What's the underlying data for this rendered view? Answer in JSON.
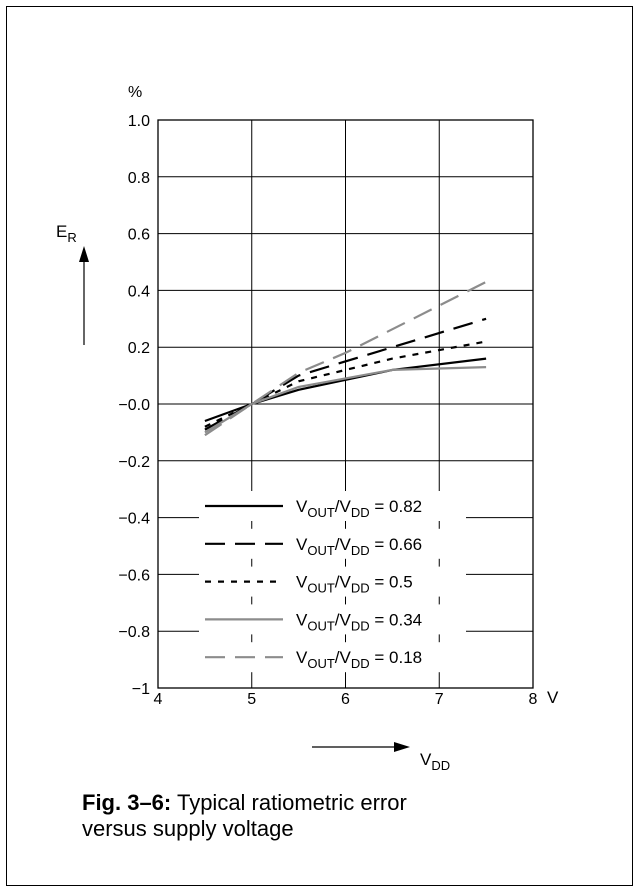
{
  "chart_data": {
    "type": "line",
    "x_ticks": [
      "4",
      "5",
      "6",
      "7",
      "8"
    ],
    "x_unit": "V",
    "y_ticks": [
      "1.0",
      "0.8",
      "0.6",
      "0.4",
      "0.2",
      "−0.0",
      "−0.2",
      "−0.4",
      "−0.6",
      "−0.8",
      "−1"
    ],
    "y_unit": "%",
    "ylabel": {
      "main": "E",
      "sub": "R"
    },
    "xlabel": {
      "main": "V",
      "sub": "DD"
    },
    "xlim": [
      4,
      8
    ],
    "ylim": [
      -1,
      1
    ],
    "grid": true,
    "legend_position": "bottom-left inside plot",
    "series": [
      {
        "label": {
          "a": "V",
          "a_sub": "OUT",
          "b": "/V",
          "b_sub": "DD",
          "value": " = 0.82"
        },
        "color": "#000000",
        "dash": "solid",
        "points": [
          [
            4.5,
            -0.06
          ],
          [
            5,
            0
          ],
          [
            5.5,
            0.05
          ],
          [
            6.5,
            0.12
          ],
          [
            7.5,
            0.16
          ]
        ]
      },
      {
        "label": {
          "a": "V",
          "a_sub": "OUT",
          "b": "/V",
          "b_sub": "DD",
          "value": " = 0.66"
        },
        "color": "#000000",
        "dash": "long",
        "points": [
          [
            4.5,
            -0.09
          ],
          [
            5,
            0
          ],
          [
            5.5,
            0.1
          ],
          [
            6.5,
            0.2
          ],
          [
            7.5,
            0.3
          ]
        ]
      },
      {
        "label": {
          "a": "V",
          "a_sub": "OUT",
          "b": "/V",
          "b_sub": "DD",
          "value": " = 0.5"
        },
        "color": "#000000",
        "dash": "short",
        "points": [
          [
            4.5,
            -0.08
          ],
          [
            5,
            0
          ],
          [
            5.5,
            0.08
          ],
          [
            6.5,
            0.16
          ],
          [
            7.5,
            0.22
          ]
        ]
      },
      {
        "label": {
          "a": "V",
          "a_sub": "OUT",
          "b": "/V",
          "b_sub": "DD",
          "value": " = 0.34"
        },
        "color": "#8c8c8c",
        "dash": "solid",
        "points": [
          [
            4.5,
            -0.1
          ],
          [
            5,
            0
          ],
          [
            5.5,
            0.06
          ],
          [
            6.5,
            0.12
          ],
          [
            7.5,
            0.13
          ]
        ]
      },
      {
        "label": {
          "a": "V",
          "a_sub": "OUT",
          "b": "/V",
          "b_sub": "DD",
          "value": " = 0.18"
        },
        "color": "#8c8c8c",
        "dash": "long",
        "points": [
          [
            4.5,
            -0.11
          ],
          [
            5,
            0
          ],
          [
            5.5,
            0.11
          ],
          [
            6,
            0.18
          ],
          [
            7.5,
            0.43
          ]
        ]
      }
    ]
  },
  "caption": {
    "label": "Fig. 3–6:",
    "text": " Typical ratiometric error",
    "line2": "versus supply voltage"
  }
}
